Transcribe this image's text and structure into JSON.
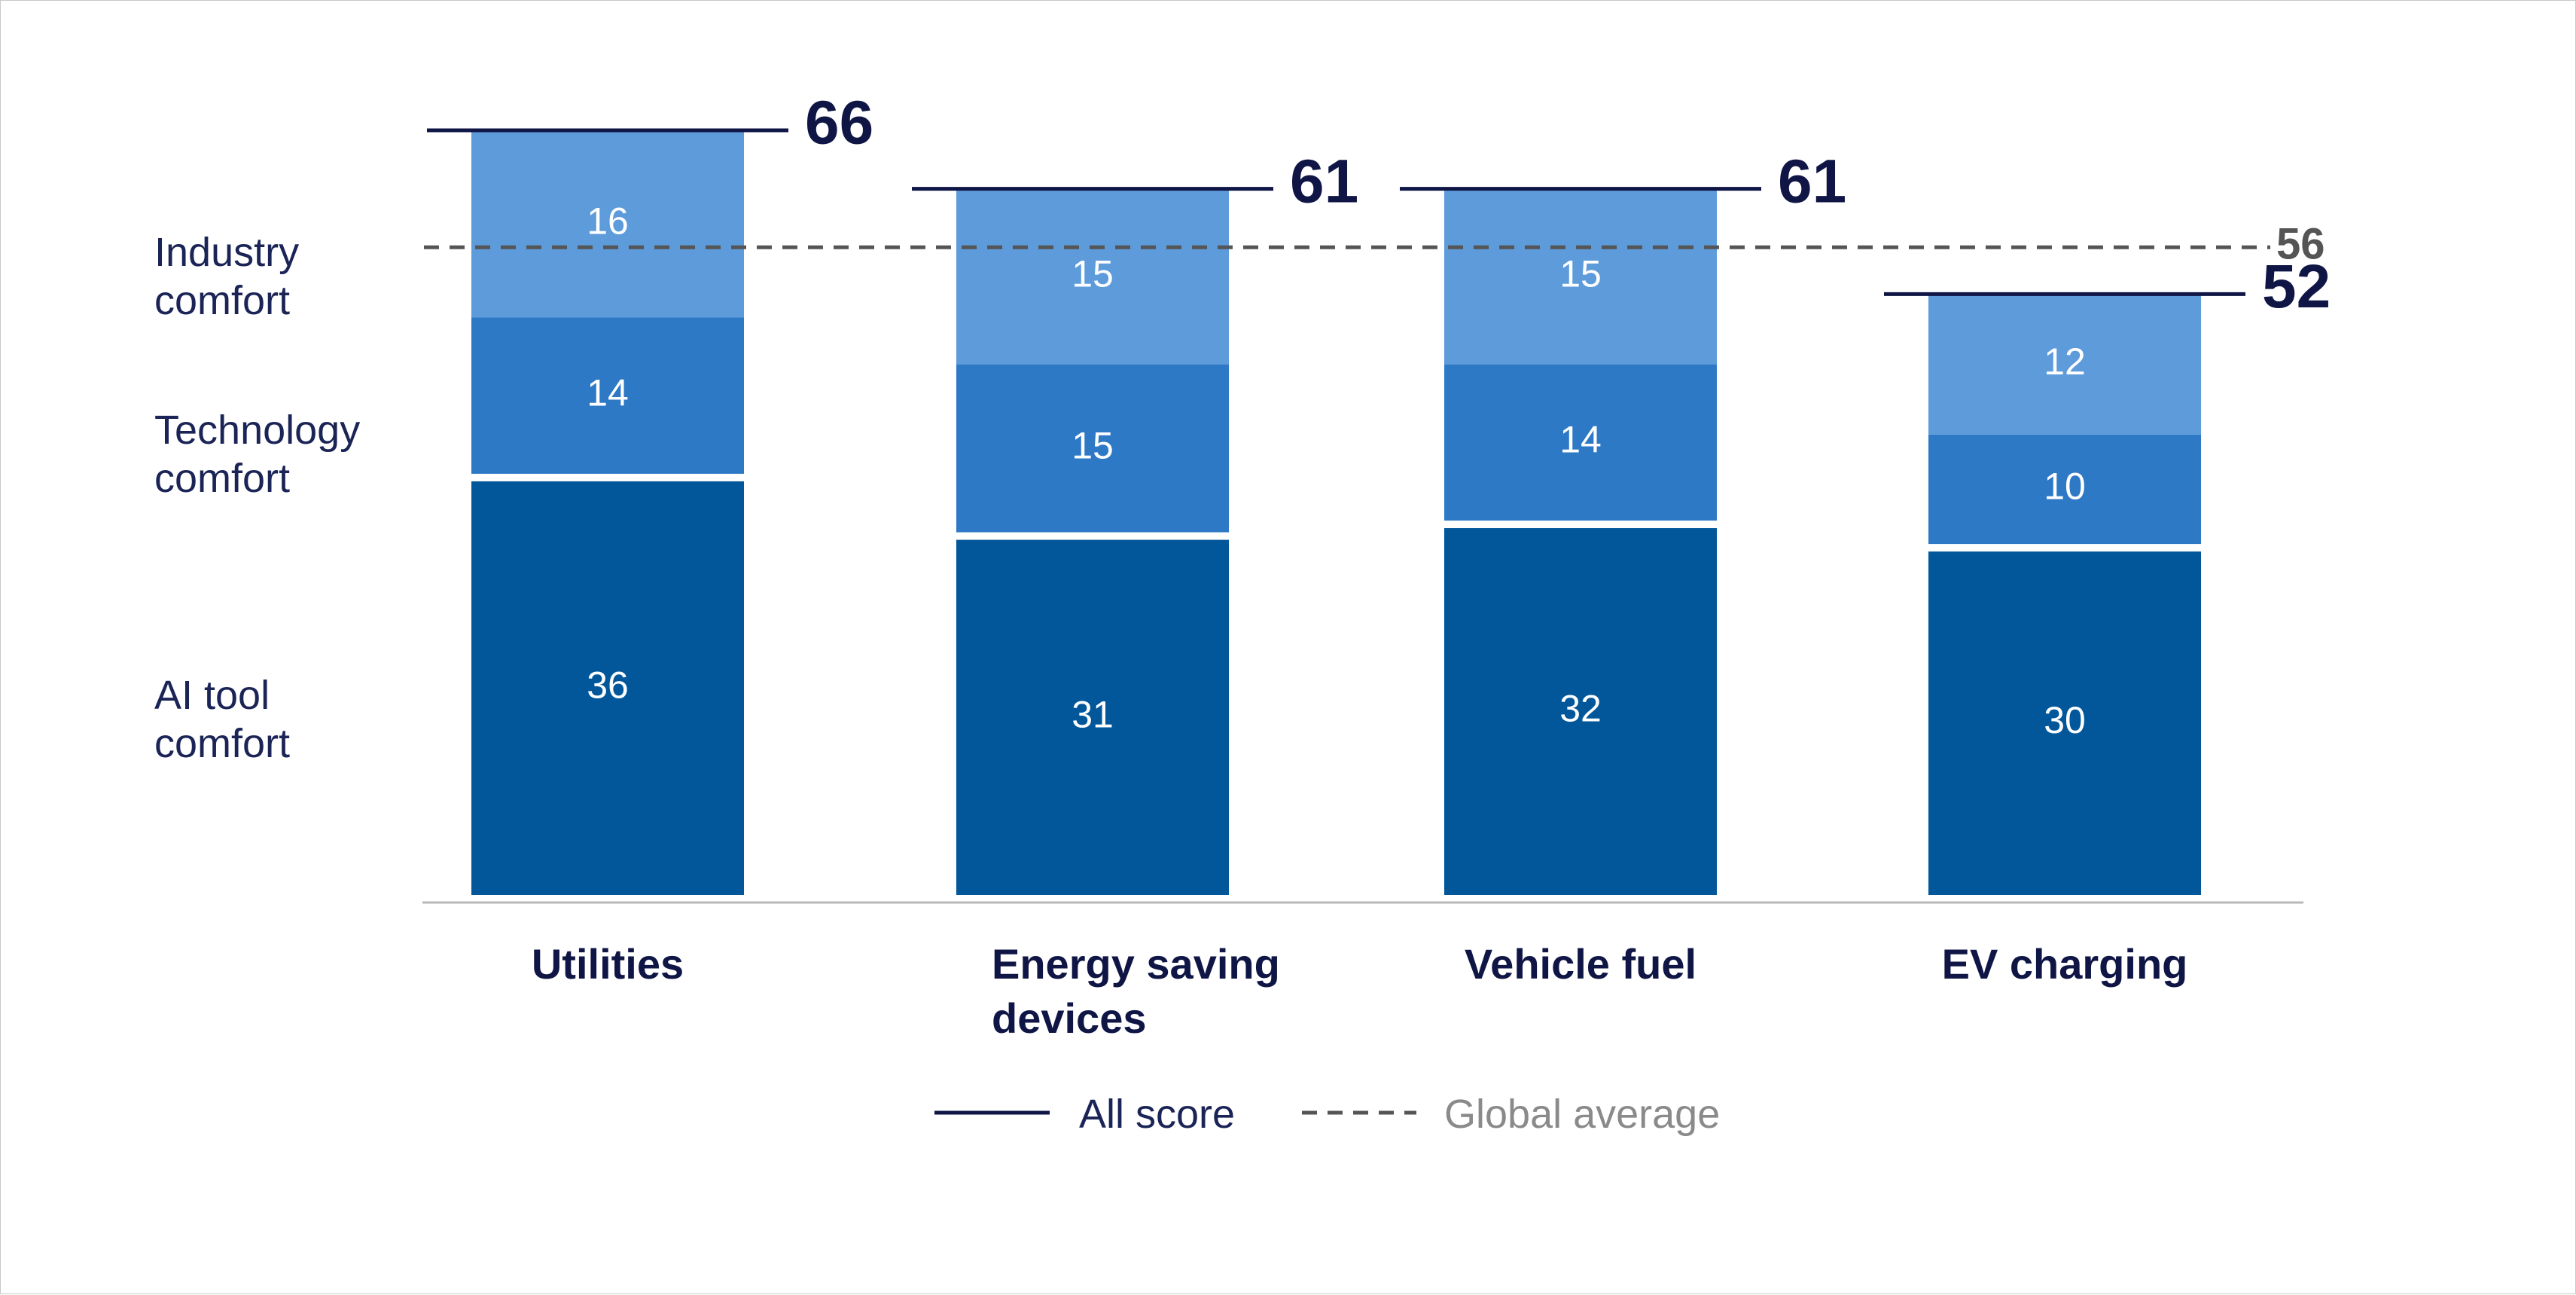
{
  "chart_data": {
    "type": "bar",
    "stacked": true,
    "categories": [
      "Utilities",
      "Energy saving devices",
      "Vehicle fuel",
      "EV charging"
    ],
    "category_lines": [
      [
        "Utilities"
      ],
      [
        "Energy saving",
        "devices"
      ],
      [
        "Vehicle fuel"
      ],
      [
        "EV charging"
      ]
    ],
    "series": [
      {
        "name": "AI tool comfort",
        "name_lines": [
          "AI tool",
          "comfort"
        ],
        "color": "#02579b",
        "values": [
          36,
          31,
          32,
          30
        ]
      },
      {
        "name": "Technology comfort",
        "name_lines": [
          "Technology",
          "comfort"
        ],
        "color": "#2e79c5",
        "values": [
          14,
          15,
          14,
          10
        ]
      },
      {
        "name": "Industry comfort",
        "name_lines": [
          "Industry",
          "comfort"
        ],
        "color": "#5d9bdb",
        "values": [
          16,
          15,
          15,
          12
        ]
      }
    ],
    "totals": [
      66,
      61,
      61,
      52
    ],
    "global_average": 56,
    "ylim": [
      0,
      66
    ],
    "legend": {
      "placement": "bottom-center",
      "all_score": "All score",
      "global_average": "Global average"
    },
    "colors": {
      "total_line": "#0f1645",
      "average_line": "#555555",
      "axis": "#b8b8b8",
      "legend_muted_text": "#8a8a8a"
    }
  }
}
